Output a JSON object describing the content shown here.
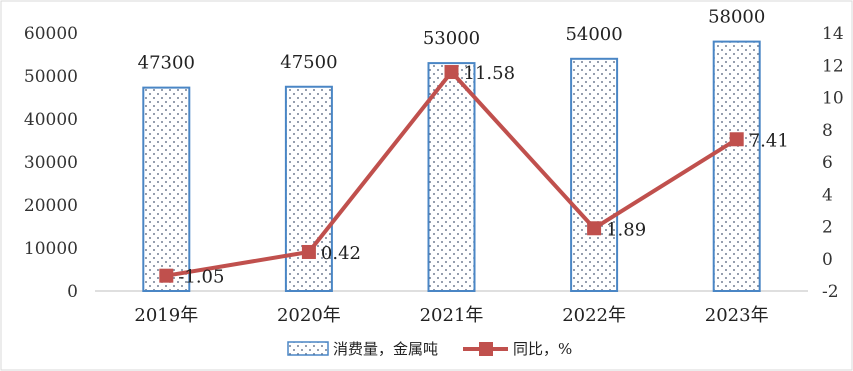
{
  "chart_data": {
    "type": "bar",
    "categories": [
      "2019年",
      "2020年",
      "2021年",
      "2022年",
      "2023年"
    ],
    "series": [
      {
        "name": "消费量，金属吨",
        "type": "bar",
        "axis": "left",
        "values": [
          47300,
          47500,
          53000,
          54000,
          58000
        ],
        "labels": [
          "47300",
          "47500",
          "53000",
          "54000",
          "58000"
        ],
        "color": "#4a86c5"
      },
      {
        "name": "同比，%",
        "type": "line",
        "axis": "right",
        "values": [
          -1.05,
          0.42,
          11.58,
          1.89,
          7.41
        ],
        "labels": [
          "-1.05",
          "0.42",
          "11.58",
          "1.89",
          "7.41"
        ],
        "color": "#c0504d"
      }
    ],
    "y_left": {
      "ylim": [
        0,
        60000
      ],
      "ticks": [
        "0",
        "10000",
        "20000",
        "30000",
        "40000",
        "50000",
        "60000"
      ]
    },
    "y_right": {
      "ylim": [
        -2,
        14
      ],
      "ticks": [
        "-2",
        "0",
        "2",
        "4",
        "6",
        "8",
        "10",
        "12",
        "14"
      ]
    },
    "grid": false,
    "legend": "bottom"
  }
}
